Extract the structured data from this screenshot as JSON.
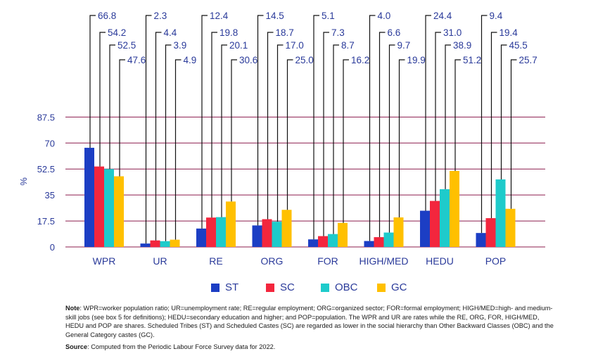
{
  "chart_data": {
    "type": "bar",
    "ylabel": "%",
    "ylim": [
      0,
      105
    ],
    "yticks": [
      "0",
      "17.5",
      "35",
      "52.5",
      "70",
      "87.5"
    ],
    "grid": true,
    "categories": [
      "WPR",
      "UR",
      "RE",
      "ORG",
      "FOR",
      "HIGH/MED",
      "HEDU",
      "POP"
    ],
    "series": [
      {
        "name": "ST",
        "color": "#1c3ec4",
        "values": [
          66.8,
          2.3,
          12.4,
          14.5,
          5.1,
          4.0,
          24.4,
          9.4
        ]
      },
      {
        "name": "SC",
        "color": "#f3263d",
        "values": [
          54.2,
          4.4,
          19.8,
          18.7,
          7.3,
          6.6,
          31.0,
          19.4
        ]
      },
      {
        "name": "OBC",
        "color": "#1ecbcb",
        "values": [
          52.5,
          3.9,
          20.1,
          17.0,
          8.7,
          9.7,
          38.9,
          45.5
        ]
      },
      {
        "name": "GC",
        "color": "#ffc000",
        "values": [
          47.6,
          4.9,
          30.6,
          25.0,
          16.2,
          19.9,
          51.2,
          25.7
        ]
      }
    ],
    "value_labels": [
      [
        "66.8",
        "54.2",
        "52.5",
        "47.6"
      ],
      [
        "2.3",
        "4.4",
        "3.9",
        "4.9"
      ],
      [
        "12.4",
        "19.8",
        "20.1",
        "30.6"
      ],
      [
        "14.5",
        "18.7",
        "17.0",
        "25.0"
      ],
      [
        "5.1",
        "7.3",
        "8.7",
        "16.2"
      ],
      [
        "4.0",
        "6.6",
        "9.7",
        "19.9"
      ],
      [
        "24.4",
        "31.0",
        "38.9",
        "51.2"
      ],
      [
        "9.4",
        "19.4",
        "45.5",
        "25.7"
      ]
    ],
    "legend_position": "bottom"
  },
  "colors": {
    "gridline": "#8c1c4e",
    "axis_text": "#2a3a9a",
    "leader": "#111111"
  },
  "note": {
    "label": "Note",
    "text": ": WPR=worker population ratio; UR=unemployment rate; RE=regular employment; ORG=organized sector; FOR=formal employment; HIGH/MED=high- and medium-skill jobs (see box 5 for definitions); HEDU=secondary education and higher; and POP=population. The WPR and UR are rates while the RE, ORG, FOR, HIGH/MED, HEDU and POP are shares. Scheduled Tribes (ST) and Scheduled Castes (SC) are regarded as lower in the social hierarchy than Other Backward Classes (OBC) and the General Category castes (GC)."
  },
  "source": {
    "label": "Source",
    "text": ": Computed from the Periodic Labour Force Survey data for 2022."
  }
}
